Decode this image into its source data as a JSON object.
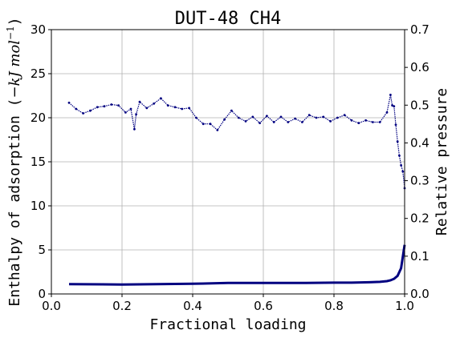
{
  "chart_data": {
    "type": "scatter",
    "title": "DUT-48 CH4",
    "xlabel": "Fractional loading",
    "ylabel_prefix": "Enthalpy of adsorption (",
    "ylabel_math": "−kJ mol",
    "ylabel_sup": "−1",
    "ylabel_suffix": ")",
    "ylabel2": "Relative pressure",
    "xlim": [
      0.0,
      1.0
    ],
    "ylim": [
      0,
      30
    ],
    "y2lim": [
      0.0,
      0.7
    ],
    "grid": true,
    "xticks": [
      "0.0",
      "0.2",
      "0.4",
      "0.6",
      "0.8",
      "1.0"
    ],
    "yticks": [
      "0",
      "5",
      "10",
      "15",
      "20",
      "25",
      "30"
    ],
    "y2ticks": [
      "0.0",
      "0.1",
      "0.2",
      "0.3",
      "0.4",
      "0.5",
      "0.6",
      "0.7"
    ],
    "series": [
      {
        "axis": "left",
        "style": "points",
        "color": "#000080",
        "x": [
          0.05,
          0.07,
          0.09,
          0.11,
          0.13,
          0.15,
          0.17,
          0.19,
          0.21,
          0.225,
          0.235,
          0.24,
          0.25,
          0.27,
          0.29,
          0.31,
          0.33,
          0.35,
          0.37,
          0.39,
          0.41,
          0.43,
          0.45,
          0.47,
          0.49,
          0.51,
          0.53,
          0.55,
          0.57,
          0.59,
          0.61,
          0.63,
          0.65,
          0.67,
          0.69,
          0.71,
          0.73,
          0.75,
          0.77,
          0.79,
          0.81,
          0.83,
          0.85,
          0.87,
          0.89,
          0.91,
          0.93,
          0.95,
          0.96,
          0.965,
          0.97,
          0.975,
          0.98,
          0.985,
          0.99,
          0.995,
          1.0
        ],
        "y": [
          21.7,
          21.0,
          20.5,
          20.8,
          21.2,
          21.3,
          21.5,
          21.4,
          20.6,
          21.0,
          18.7,
          20.4,
          21.8,
          21.1,
          21.6,
          22.2,
          21.4,
          21.2,
          21.0,
          21.1,
          20.0,
          19.3,
          19.3,
          18.6,
          19.8,
          20.8,
          20.0,
          19.6,
          20.1,
          19.4,
          20.2,
          19.5,
          20.1,
          19.5,
          19.9,
          19.5,
          20.3,
          20.0,
          20.1,
          19.6,
          20.0,
          20.3,
          19.7,
          19.4,
          19.7,
          19.5,
          19.5,
          20.6,
          22.6,
          21.4,
          21.3,
          19.2,
          17.3,
          15.7,
          14.6,
          13.9,
          12.0
        ]
      },
      {
        "axis": "right",
        "style": "line",
        "color": "#000080",
        "x": [
          0.05,
          0.2,
          0.3,
          0.4,
          0.5,
          0.6,
          0.7,
          0.8,
          0.85,
          0.9,
          0.93,
          0.95,
          0.96,
          0.97,
          0.98,
          0.99,
          1.0
        ],
        "y": [
          0.026,
          0.025,
          0.026,
          0.027,
          0.029,
          0.029,
          0.029,
          0.03,
          0.03,
          0.031,
          0.032,
          0.034,
          0.036,
          0.04,
          0.048,
          0.068,
          0.13
        ]
      }
    ]
  }
}
